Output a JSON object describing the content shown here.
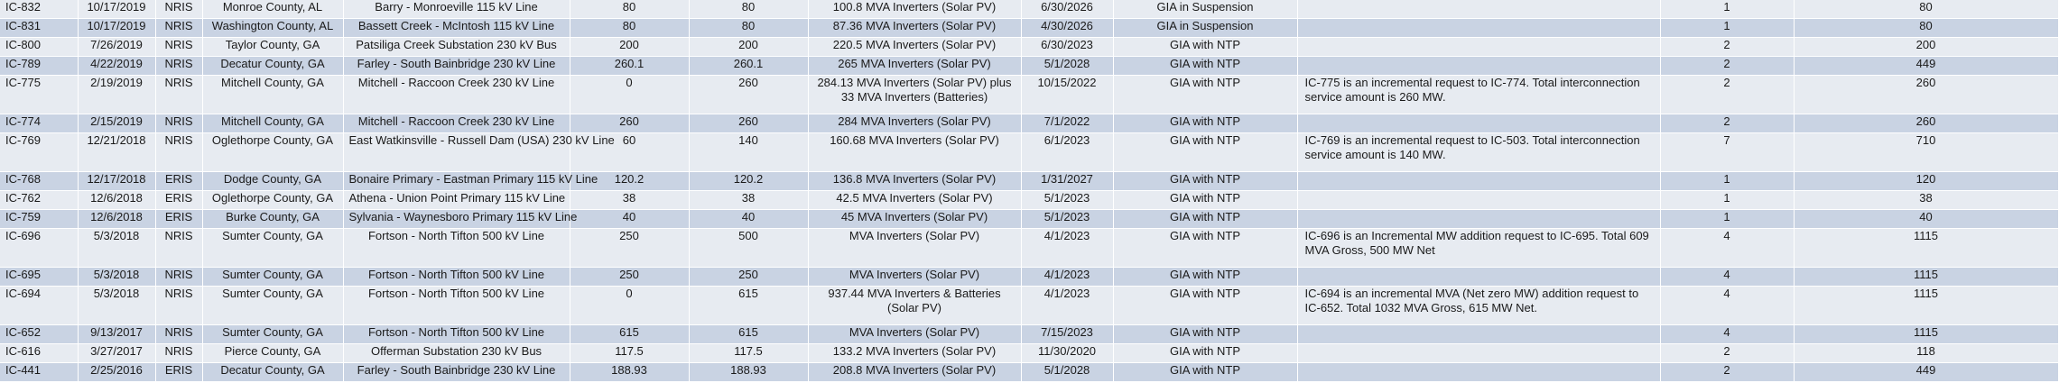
{
  "rows": [
    {
      "id": "IC-832",
      "date": "10/17/2019",
      "service": "NRIS",
      "county": "Monroe County, AL",
      "poi": "Barry - Monroeville 115 kV Line",
      "mw1": "80",
      "mw2": "80",
      "fuel": "100.8 MVA Inverters (Solar PV)",
      "cod": "6/30/2026",
      "status": "GIA in Suspension",
      "comment": "",
      "n": "1",
      "total": "80",
      "tall": false
    },
    {
      "id": "IC-831",
      "date": "10/17/2019",
      "service": "NRIS",
      "county": "Washington County, AL",
      "poi": "Bassett Creek - McIntosh 115 kV Line",
      "mw1": "80",
      "mw2": "80",
      "fuel": "87.36 MVA Inverters (Solar PV)",
      "cod": "4/30/2026",
      "status": "GIA in Suspension",
      "comment": "",
      "n": "1",
      "total": "80",
      "tall": false
    },
    {
      "id": "IC-800",
      "date": "7/26/2019",
      "service": "NRIS",
      "county": "Taylor County, GA",
      "poi": "Patsiliga Creek Substation 230 kV Bus",
      "mw1": "200",
      "mw2": "200",
      "fuel": "220.5 MVA Inverters (Solar PV)",
      "cod": "6/30/2023",
      "status": "GIA with NTP",
      "comment": "",
      "n": "2",
      "total": "200",
      "tall": false
    },
    {
      "id": "IC-789",
      "date": "4/22/2019",
      "service": "NRIS",
      "county": "Decatur County, GA",
      "poi": "Farley - South Bainbridge 230 kV Line",
      "mw1": "260.1",
      "mw2": "260.1",
      "fuel": "265 MVA Inverters (Solar PV)",
      "cod": "5/1/2028",
      "status": "GIA with NTP",
      "comment": "",
      "n": "2",
      "total": "449",
      "tall": false
    },
    {
      "id": "IC-775",
      "date": "2/19/2019",
      "service": "NRIS",
      "county": "Mitchell County, GA",
      "poi": "Mitchell - Raccoon Creek 230 kV Line",
      "mw1": "0",
      "mw2": "260",
      "fuel": "284.13 MVA Inverters (Solar PV) plus 33 MVA Inverters (Batteries)",
      "cod": "10/15/2022",
      "status": "GIA with NTP",
      "comment": "IC-775 is an incremental request to IC-774. Total interconnection service amount is 260 MW.",
      "n": "2",
      "total": "260",
      "tall": true
    },
    {
      "id": "IC-774",
      "date": "2/15/2019",
      "service": "NRIS",
      "county": "Mitchell County, GA",
      "poi": "Mitchell - Raccoon Creek 230 kV Line",
      "mw1": "260",
      "mw2": "260",
      "fuel": "284 MVA Inverters (Solar PV)",
      "cod": "7/1/2022",
      "status": "GIA with NTP",
      "comment": "",
      "n": "2",
      "total": "260",
      "tall": false
    },
    {
      "id": "IC-769",
      "date": "12/21/2018",
      "service": "NRIS",
      "county": "Oglethorpe County, GA",
      "poi": "East Watkinsville - Russell Dam (USA) 230 kV Line",
      "mw1": "60",
      "mw2": "140",
      "fuel": "160.68 MVA Inverters (Solar PV)",
      "cod": "6/1/2023",
      "status": "GIA with NTP",
      "comment": "IC-769 is an incremental request to IC-503. Total interconnection service amount is 140 MW.",
      "n": "7",
      "total": "710",
      "tall": true
    },
    {
      "id": "IC-768",
      "date": "12/17/2018",
      "service": "ERIS",
      "county": "Dodge County, GA",
      "poi": "Bonaire Primary - Eastman Primary 115 kV Line",
      "mw1": "120.2",
      "mw2": "120.2",
      "fuel": "136.8 MVA Inverters (Solar PV)",
      "cod": "1/31/2027",
      "status": "GIA with NTP",
      "comment": "",
      "n": "1",
      "total": "120",
      "tall": false
    },
    {
      "id": "IC-762",
      "date": "12/6/2018",
      "service": "ERIS",
      "county": "Oglethorpe County, GA",
      "poi": "Athena - Union Point Primary 115 kV Line",
      "mw1": "38",
      "mw2": "38",
      "fuel": "42.5 MVA Inverters (Solar PV)",
      "cod": "5/1/2023",
      "status": "GIA with NTP",
      "comment": "",
      "n": "1",
      "total": "38",
      "tall": false
    },
    {
      "id": "IC-759",
      "date": "12/6/2018",
      "service": "ERIS",
      "county": "Burke County, GA",
      "poi": "Sylvania - Waynesboro Primary 115 kV Line",
      "mw1": "40",
      "mw2": "40",
      "fuel": "45 MVA Inverters (Solar PV)",
      "cod": "5/1/2023",
      "status": "GIA with NTP",
      "comment": "",
      "n": "1",
      "total": "40",
      "tall": false
    },
    {
      "id": "IC-696",
      "date": "5/3/2018",
      "service": "NRIS",
      "county": "Sumter County, GA",
      "poi": "Fortson - North Tifton 500 kV Line",
      "mw1": "250",
      "mw2": "500",
      "fuel": "MVA Inverters (Solar PV)",
      "cod": "4/1/2023",
      "status": "GIA with NTP",
      "comment": "IC-696 is an Incremental MW addition request to IC-695. Total 609 MVA Gross, 500 MW Net",
      "n": "4",
      "total": "1115",
      "tall": true
    },
    {
      "id": "IC-695",
      "date": "5/3/2018",
      "service": "NRIS",
      "county": "Sumter County, GA",
      "poi": "Fortson - North Tifton 500 kV Line",
      "mw1": "250",
      "mw2": "250",
      "fuel": "MVA Inverters (Solar PV)",
      "cod": "4/1/2023",
      "status": "GIA with NTP",
      "comment": "",
      "n": "4",
      "total": "1115",
      "tall": false
    },
    {
      "id": "IC-694",
      "date": "5/3/2018",
      "service": "NRIS",
      "county": "Sumter County, GA",
      "poi": "Fortson - North Tifton 500 kV Line",
      "mw1": "0",
      "mw2": "615",
      "fuel": "937.44 MVA Inverters & Batteries (Solar PV)",
      "cod": "4/1/2023",
      "status": "GIA with NTP",
      "comment": "IC-694 is an incremental MVA (Net zero MW) addition request to IC-652. Total 1032 MVA Gross, 615 MW Net.",
      "n": "4",
      "total": "1115",
      "tall": true
    },
    {
      "id": "IC-652",
      "date": "9/13/2017",
      "service": "NRIS",
      "county": "Sumter County, GA",
      "poi": "Fortson - North Tifton 500 kV Line",
      "mw1": "615",
      "mw2": "615",
      "fuel": "MVA Inverters (Solar PV)",
      "cod": "7/15/2023",
      "status": "GIA with NTP",
      "comment": "",
      "n": "4",
      "total": "1115",
      "tall": false
    },
    {
      "id": "IC-616",
      "date": "3/27/2017",
      "service": "NRIS",
      "county": "Pierce County, GA",
      "poi": "Offerman Substation 230 kV Bus",
      "mw1": "117.5",
      "mw2": "117.5",
      "fuel": "133.2 MVA Inverters (Solar PV)",
      "cod": "11/30/2020",
      "status": "GIA with NTP",
      "comment": "",
      "n": "2",
      "total": "118",
      "tall": false
    },
    {
      "id": "IC-441",
      "date": "2/25/2016",
      "service": "ERIS",
      "county": "Decatur County, GA",
      "poi": "Farley - South Bainbridge 230 kV Line",
      "mw1": "188.93",
      "mw2": "188.93",
      "fuel": "208.8 MVA Inverters (Solar PV)",
      "cod": "5/1/2028",
      "status": "GIA with NTP",
      "comment": "",
      "n": "2",
      "total": "449",
      "tall": false
    }
  ]
}
